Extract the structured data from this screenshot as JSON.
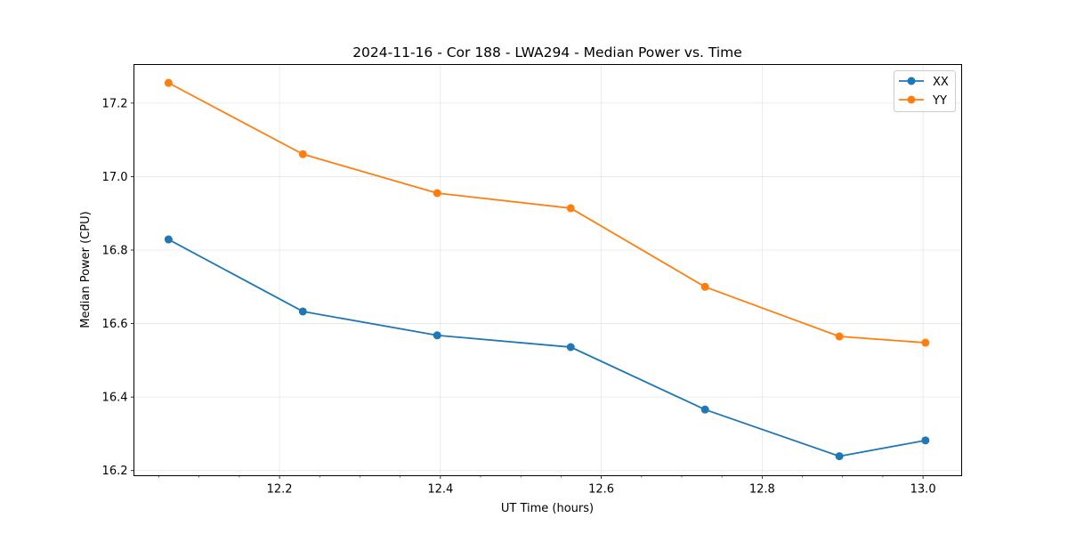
{
  "chart_data": {
    "type": "line",
    "title": "2024-11-16 - Cor 188 - LWA294 - Median Power vs. Time",
    "xlabel": "UT Time (hours)",
    "ylabel": "Median Power (CPU)",
    "xlim": [
      12.019,
      13.048
    ],
    "ylim": [
      16.186,
      17.305
    ],
    "x_ticks": [
      12.2,
      12.4,
      12.6,
      12.8,
      13.0
    ],
    "x_tick_labels": [
      "12.2",
      "12.4",
      "12.6",
      "12.8",
      "13.0"
    ],
    "x_minor_step": 0.05,
    "y_ticks": [
      16.2,
      16.4,
      16.6,
      16.8,
      17.0,
      17.2
    ],
    "y_tick_labels": [
      "16.2",
      "16.4",
      "16.6",
      "16.8",
      "17.0",
      "17.2"
    ],
    "grid": true,
    "legend_position": "top-right",
    "x": [
      12.062,
      12.229,
      12.396,
      12.562,
      12.729,
      12.896,
      13.003
    ],
    "series": [
      {
        "name": "XX",
        "color": "#1f77b4",
        "values": [
          16.829,
          16.633,
          16.568,
          16.536,
          16.366,
          16.239,
          16.282
        ]
      },
      {
        "name": "YY",
        "color": "#ff7f0e",
        "values": [
          17.255,
          17.061,
          16.955,
          16.914,
          16.7,
          16.565,
          16.548
        ]
      }
    ]
  }
}
